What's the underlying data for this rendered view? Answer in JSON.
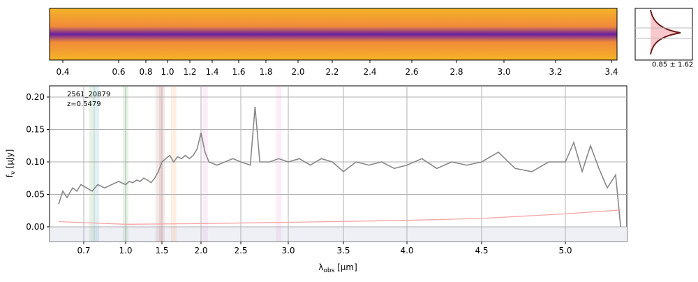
{
  "chart_data": {
    "type": "line",
    "legend_text": [
      "2561_20879",
      "z=0.5479"
    ],
    "ylabel": {
      "main": "f",
      "sub": "ν",
      "unit": " [μJy]"
    },
    "xlabel": {
      "main": "λ",
      "sub": "obs",
      "unit": " [μm]"
    },
    "xlim": [
      0.455,
      5.37
    ],
    "ylim": [
      -0.0226,
      0.2172
    ],
    "xticks": [
      0.7,
      {
        "value": 1,
        "label": "1.0"
      },
      1.5,
      {
        "value": 2,
        "label": "2.0"
      },
      2.5,
      {
        "value": 3,
        "label": "3.0"
      },
      3.5,
      {
        "value": 4,
        "label": "4.0"
      },
      4.5,
      {
        "value": 5,
        "label": "5.0"
      }
    ],
    "yticks": [
      {
        "value": 0,
        "label": "0.00"
      },
      {
        "value": 0.05,
        "label": "0.05"
      },
      {
        "value": 0.1,
        "label": "0.10"
      },
      {
        "value": 0.15,
        "label": "0.15"
      },
      {
        "value": 0.2,
        "label": "0.20"
      }
    ],
    "grid": true,
    "top_ticks": [
      0.4,
      0.6,
      0.8,
      {
        "value": 1,
        "label": "1.0"
      },
      1.2,
      1.4,
      1.6,
      1.8,
      {
        "value": 2,
        "label": "2.0"
      },
      2.2,
      2.4,
      2.6,
      2.8,
      {
        "value": 3,
        "label": "3.0"
      },
      3.2,
      3.4
    ],
    "side_label": "0.85 ± 1.62",
    "bands": [
      {
        "x": 0.76,
        "color": "#2ca02c"
      },
      {
        "x": 0.79,
        "color": "#1f77b4"
      },
      {
        "x": 1.0,
        "color": "#2ca02c"
      },
      {
        "x": 1.45,
        "color": "#8c564b"
      },
      {
        "x": 1.5,
        "color": "#d62728"
      },
      {
        "x": 1.65,
        "color": "#ff7f0e"
      },
      {
        "x": 2.05,
        "color": "#e377c2"
      },
      {
        "x": 2.9,
        "color": "#e377c2"
      }
    ],
    "series": [
      {
        "color": "#888888",
        "x": [
          0.52,
          0.55,
          0.58,
          0.62,
          0.65,
          0.68,
          0.72,
          0.76,
          0.8,
          0.85,
          0.9,
          0.95,
          1.0,
          1.05,
          1.1,
          1.15,
          1.2,
          1.25,
          1.3,
          1.35,
          1.4,
          1.45,
          1.5,
          1.55,
          1.6,
          1.65,
          1.7,
          1.75,
          1.8,
          1.85,
          1.9,
          1.95,
          2.0,
          2.05,
          2.1,
          2.2,
          2.3,
          2.4,
          2.5,
          2.6,
          2.65,
          2.7,
          2.8,
          2.9,
          3.0,
          3.1,
          3.2,
          3.3,
          3.4,
          3.5,
          3.6,
          3.7,
          3.8,
          3.9,
          4.0,
          4.1,
          4.2,
          4.3,
          4.4,
          4.5,
          4.6,
          4.7,
          4.8,
          4.9,
          5.0,
          5.05,
          5.1,
          5.15,
          5.2,
          5.25,
          5.3,
          5.33
        ],
        "values": [
          0.035,
          0.055,
          0.045,
          0.06,
          0.055,
          0.065,
          0.06,
          0.055,
          0.065,
          0.06,
          0.065,
          0.07,
          0.065,
          0.07,
          0.068,
          0.072,
          0.07,
          0.075,
          0.072,
          0.068,
          0.075,
          0.085,
          0.1,
          0.105,
          0.11,
          0.1,
          0.108,
          0.105,
          0.11,
          0.105,
          0.11,
          0.12,
          0.145,
          0.115,
          0.1,
          0.095,
          0.1,
          0.105,
          0.1,
          0.095,
          0.185,
          0.1,
          0.1,
          0.105,
          0.1,
          0.105,
          0.095,
          0.105,
          0.1,
          0.085,
          0.1,
          0.095,
          0.1,
          0.09,
          0.095,
          0.105,
          0.09,
          0.1,
          0.095,
          0.1,
          0.115,
          0.09,
          0.085,
          0.1,
          0.1,
          0.13,
          0.085,
          0.125,
          0.09,
          0.06,
          0.08,
          0
        ]
      },
      {
        "color": "#f4a6a6",
        "x": [
          0.52,
          1.0,
          2.0,
          3.0,
          4.0,
          4.5,
          5.0,
          5.33
        ],
        "values": [
          0.008,
          0.004,
          0.005,
          0.007,
          0.01,
          0.013,
          0.02,
          0.026
        ]
      }
    ]
  }
}
